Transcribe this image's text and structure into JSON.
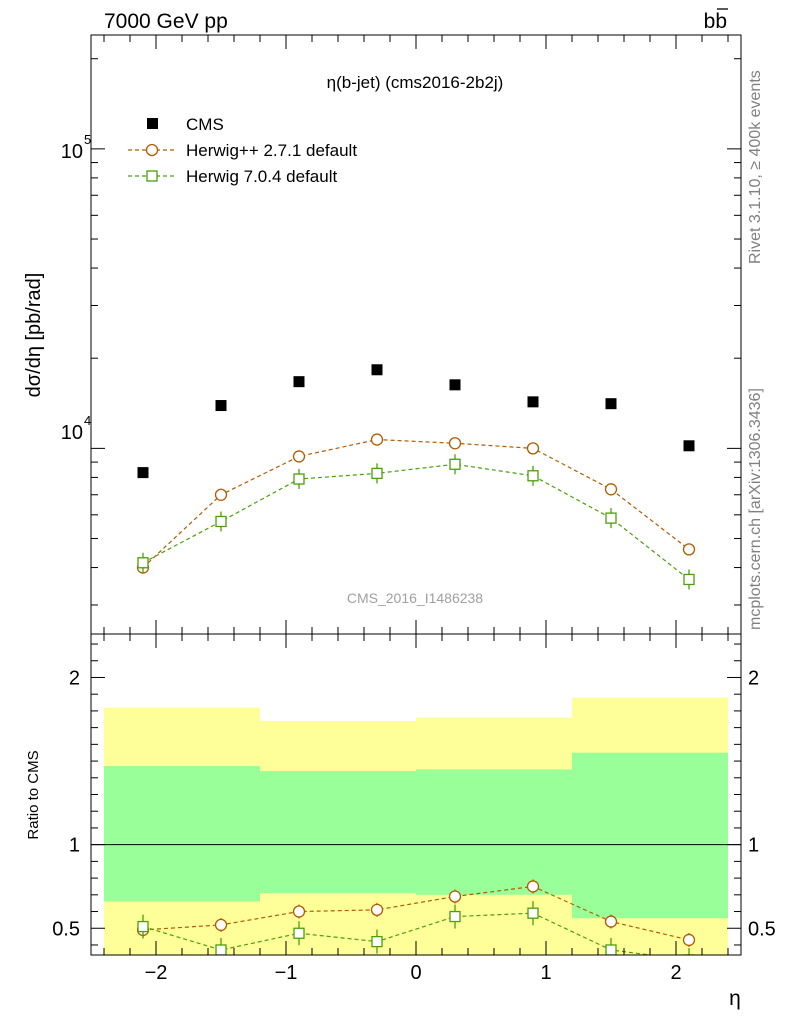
{
  "header": {
    "left": "7000 GeV pp",
    "right": "b",
    "right_bar": "b"
  },
  "side_labels": {
    "top": "Rivet 3.1.10, ≥ 400k events",
    "bottom": "mcplots.cern.ch [arXiv:1306.3436]"
  },
  "chart_data": [
    {
      "type": "scatter",
      "title": "η(b-jet) (cms2016-2b2j)",
      "ylabel": "dσ/dη [pb/rad]",
      "yscale": "log",
      "ylim": [
        2400,
        240000
      ],
      "xlim": [
        -2.5,
        2.5
      ],
      "yticks": [
        {
          "value": 10000,
          "label": "10",
          "exp": "4"
        },
        {
          "value": 100000,
          "label": "10",
          "exp": "5"
        }
      ],
      "watermark": "CMS_2016_I1486238",
      "legend_position": "top-left",
      "series": [
        {
          "name": "CMS",
          "color": "#000000",
          "marker": "filled-square",
          "line": "none",
          "x": [
            -2.1,
            -1.5,
            -0.9,
            -0.3,
            0.3,
            0.9,
            1.5,
            2.1
          ],
          "y": [
            8300,
            13900,
            16700,
            18300,
            16300,
            14300,
            14100,
            10200
          ]
        },
        {
          "name": "Herwig++ 2.7.1 default",
          "color": "#b35a00",
          "marker": "open-circle",
          "line": "dashed",
          "x": [
            -2.1,
            -1.5,
            -0.9,
            -0.3,
            0.3,
            0.9,
            1.5,
            2.1
          ],
          "y": [
            4000,
            7000,
            9400,
            10700,
            10400,
            10000,
            7300,
            4600
          ]
        },
        {
          "name": "Herwig 7.0.4 default",
          "color": "#4a9f0a",
          "marker": "open-square",
          "line": "dashed",
          "x": [
            -2.1,
            -1.5,
            -0.9,
            -0.3,
            0.3,
            0.9,
            1.5,
            2.1
          ],
          "y": [
            4150,
            5700,
            7900,
            8250,
            8850,
            8100,
            5850,
            3650
          ]
        }
      ]
    },
    {
      "type": "scatter",
      "ylabel": "Ratio to CMS",
      "xlabel": "η",
      "ylim": [
        0.34,
        2.26
      ],
      "xlim": [
        -2.5,
        2.5
      ],
      "yticks": [
        0.5,
        1,
        2
      ],
      "ytick_labels": [
        "0.5",
        "1",
        "2"
      ],
      "xticks": [
        -2,
        -1,
        0,
        1,
        2
      ],
      "xtick_labels": [
        "−2",
        "−1",
        "0",
        "1",
        "2"
      ],
      "reference_line": 1,
      "bands": [
        {
          "name": "outer",
          "color": "#ffff99",
          "bins": [
            {
              "x0": -2.4,
              "x1": -1.2,
              "lo": 0.34,
              "hi": 1.82
            },
            {
              "x0": -1.2,
              "x1": 0.0,
              "lo": 0.34,
              "hi": 1.74
            },
            {
              "x0": 0.0,
              "x1": 1.2,
              "lo": 0.34,
              "hi": 1.76
            },
            {
              "x0": 1.2,
              "x1": 2.4,
              "lo": 0.34,
              "hi": 1.88
            }
          ]
        },
        {
          "name": "inner",
          "color": "#99ff99",
          "bins": [
            {
              "x0": -2.4,
              "x1": -1.2,
              "lo": 0.66,
              "hi": 1.47
            },
            {
              "x0": -1.2,
              "x1": 0.0,
              "lo": 0.71,
              "hi": 1.44
            },
            {
              "x0": 0.0,
              "x1": 1.2,
              "lo": 0.7,
              "hi": 1.45
            },
            {
              "x0": 1.2,
              "x1": 2.4,
              "lo": 0.56,
              "hi": 1.55
            }
          ]
        }
      ],
      "series": [
        {
          "name": "Herwig++ 2.7.1 default",
          "color": "#b35a00",
          "marker": "open-circle",
          "line": "dashed",
          "x": [
            -2.1,
            -1.5,
            -0.9,
            -0.3,
            0.3,
            0.9,
            1.5,
            2.1
          ],
          "y": [
            0.49,
            0.52,
            0.6,
            0.61,
            0.69,
            0.75,
            0.54,
            0.43
          ]
        },
        {
          "name": "Herwig 7.0.4 default",
          "color": "#4a9f0a",
          "marker": "open-square",
          "line": "dashed",
          "x": [
            -2.1,
            -1.5,
            -0.9,
            -0.3,
            0.3,
            0.9,
            1.5,
            2.1
          ],
          "y": [
            0.51,
            0.37,
            0.47,
            0.42,
            0.57,
            0.59,
            0.37,
            0.31
          ]
        }
      ]
    }
  ]
}
